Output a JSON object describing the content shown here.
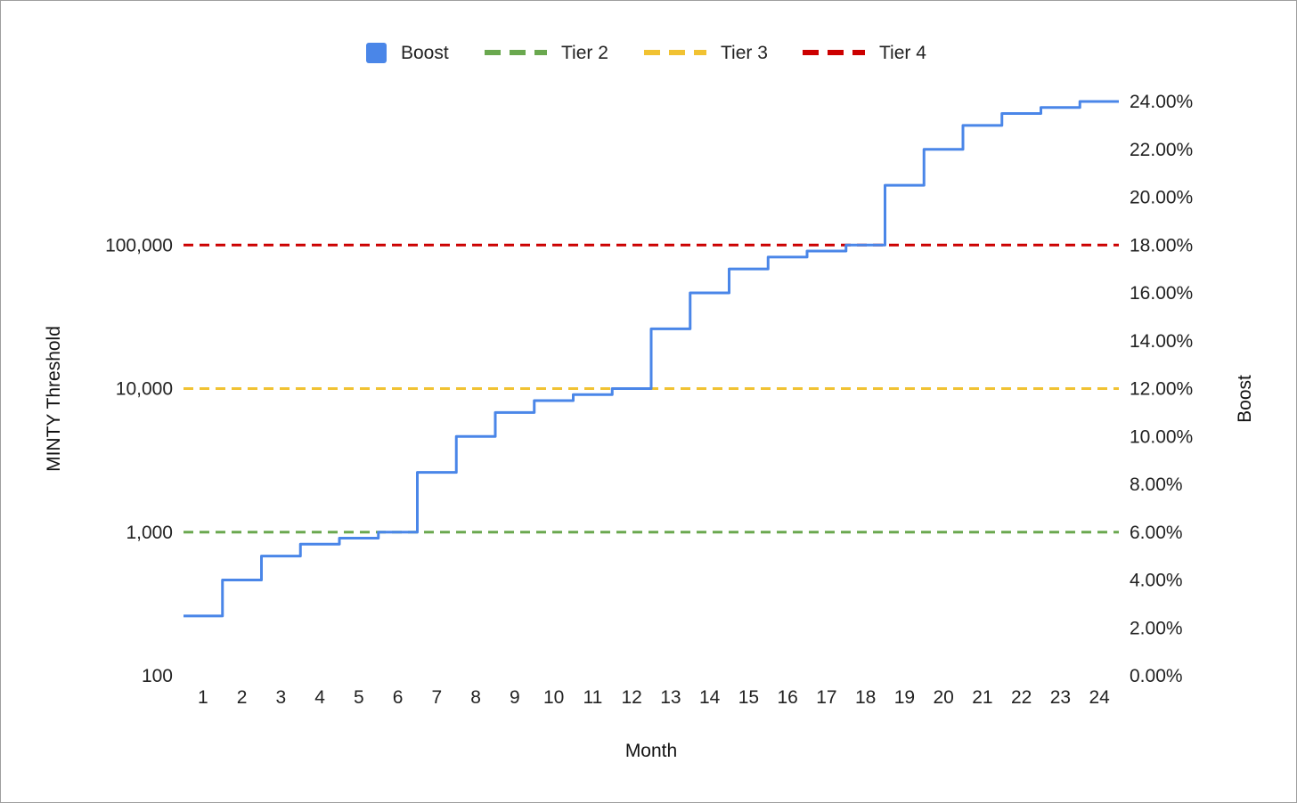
{
  "chart_data": {
    "type": "line",
    "xlabel": "Month",
    "ylabel_left": "MINTY Threshold",
    "ylabel_right": "Boost",
    "x": [
      1,
      2,
      3,
      4,
      5,
      6,
      7,
      8,
      9,
      10,
      11,
      12,
      13,
      14,
      15,
      16,
      17,
      18,
      19,
      20,
      21,
      22,
      23,
      24
    ],
    "left_axis": {
      "scale": "log",
      "ylim": [
        100,
        1000000
      ],
      "ticks": [
        100,
        1000,
        10000,
        100000
      ],
      "tick_labels": [
        "100",
        "1,000",
        "10,000",
        "100,000"
      ]
    },
    "right_axis": {
      "scale": "linear",
      "ylim": [
        0,
        24
      ],
      "ticks": [
        0,
        2,
        4,
        6,
        8,
        10,
        12,
        14,
        16,
        18,
        20,
        22,
        24
      ],
      "tick_labels": [
        "0.00%",
        "2.00%",
        "4.00%",
        "6.00%",
        "8.00%",
        "10.00%",
        "12.00%",
        "14.00%",
        "16.00%",
        "18.00%",
        "20.00%",
        "22.00%",
        "24.00%"
      ]
    },
    "series": [
      {
        "name": "Boost",
        "axis": "right",
        "style": "step",
        "color": "#4a86e8",
        "values": [
          2.5,
          4.0,
          5.0,
          5.5,
          5.75,
          6.0,
          8.5,
          10.0,
          11.0,
          11.5,
          11.75,
          12.0,
          14.5,
          16.0,
          17.0,
          17.5,
          17.75,
          18.0,
          20.5,
          22.0,
          23.0,
          23.5,
          23.75,
          24.0
        ]
      },
      {
        "name": "Tier 2",
        "axis": "left",
        "style": "dashed",
        "color": "#6aa84f",
        "value": 1000
      },
      {
        "name": "Tier 3",
        "axis": "left",
        "style": "dashed",
        "color": "#f1c232",
        "value": 10000
      },
      {
        "name": "Tier 4",
        "axis": "left",
        "style": "dashed",
        "color": "#cc0000",
        "value": 100000
      }
    ],
    "legend_position": "top",
    "grid": false
  }
}
